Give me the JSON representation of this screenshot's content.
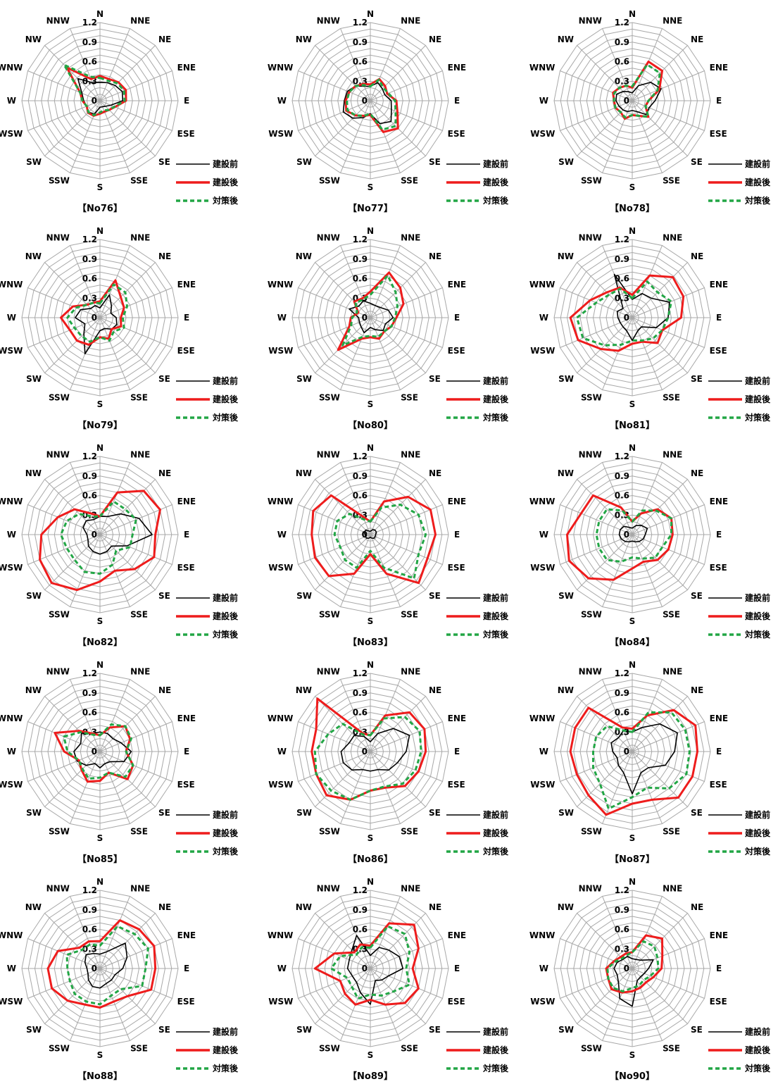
{
  "directions": [
    "N",
    "NNE",
    "NE",
    "ENE",
    "E",
    "ESE",
    "SE",
    "SSE",
    "S",
    "SSW",
    "SW",
    "WSW",
    "W",
    "WNW",
    "NW",
    "NNW"
  ],
  "axis": {
    "ticks": [
      "0",
      "0.3",
      "0.6",
      "0.9",
      "1.2"
    ],
    "rmax": 1.2
  },
  "legend": [
    {
      "label": "建設前",
      "color": "#000000",
      "style": "solid"
    },
    {
      "label": "建設後",
      "color": "#ee1c1c",
      "style": "solid"
    },
    {
      "label": "対策後",
      "color": "#22a645",
      "style": "dashed"
    }
  ],
  "chart_data": [
    {
      "type": "radar",
      "title": "【No76】",
      "series": [
        {
          "name": "建設前",
          "values": [
            0.28,
            0.3,
            0.33,
            0.37,
            0.35,
            0.18,
            0.12,
            0.1,
            0.1,
            0.22,
            0.25,
            0.22,
            0.25,
            0.3,
            0.48,
            0.3
          ]
        },
        {
          "name": "建設後",
          "values": [
            0.38,
            0.36,
            0.4,
            0.43,
            0.4,
            0.25,
            0.2,
            0.18,
            0.2,
            0.25,
            0.26,
            0.22,
            0.27,
            0.33,
            0.72,
            0.36
          ]
        },
        {
          "name": "対策後",
          "values": [
            0.35,
            0.33,
            0.38,
            0.4,
            0.38,
            0.24,
            0.2,
            0.16,
            0.18,
            0.24,
            0.25,
            0.22,
            0.27,
            0.33,
            0.78,
            0.4
          ]
        }
      ]
    },
    {
      "type": "radar",
      "title": "【No77】",
      "series": [
        {
          "name": "建設前",
          "values": [
            0.22,
            0.3,
            0.26,
            0.24,
            0.32,
            0.35,
            0.45,
            0.38,
            0.2,
            0.28,
            0.38,
            0.45,
            0.4,
            0.38,
            0.32,
            0.24
          ]
        },
        {
          "name": "建設後",
          "values": [
            0.25,
            0.36,
            0.32,
            0.28,
            0.4,
            0.45,
            0.6,
            0.52,
            0.22,
            0.25,
            0.32,
            0.4,
            0.38,
            0.35,
            0.32,
            0.28
          ]
        },
        {
          "name": "対策後",
          "values": [
            0.22,
            0.35,
            0.28,
            0.3,
            0.38,
            0.42,
            0.55,
            0.48,
            0.2,
            0.25,
            0.32,
            0.38,
            0.36,
            0.35,
            0.32,
            0.26
          ]
        }
      ]
    },
    {
      "type": "radar",
      "title": "【No78】",
      "series": [
        {
          "name": "建設前",
          "values": [
            0.12,
            0.25,
            0.4,
            0.48,
            0.35,
            0.28,
            0.3,
            0.18,
            0.15,
            0.18,
            0.2,
            0.22,
            0.25,
            0.26,
            0.2,
            0.15
          ]
        },
        {
          "name": "建設後",
          "values": [
            0.2,
            0.65,
            0.65,
            0.45,
            0.25,
            0.22,
            0.35,
            0.25,
            0.22,
            0.3,
            0.25,
            0.28,
            0.28,
            0.32,
            0.28,
            0.25
          ]
        },
        {
          "name": "対策後",
          "values": [
            0.22,
            0.6,
            0.6,
            0.42,
            0.25,
            0.22,
            0.35,
            0.25,
            0.22,
            0.28,
            0.25,
            0.28,
            0.28,
            0.3,
            0.28,
            0.25
          ]
        }
      ]
    },
    {
      "type": "radar",
      "title": "【No79】",
      "series": [
        {
          "name": "建設前",
          "values": [
            0.15,
            0.38,
            0.25,
            0.18,
            0.25,
            0.28,
            0.25,
            0.18,
            0.2,
            0.6,
            0.35,
            0.25,
            0.38,
            0.32,
            0.2,
            0.2
          ]
        },
        {
          "name": "建設後",
          "values": [
            0.25,
            0.62,
            0.45,
            0.4,
            0.32,
            0.35,
            0.25,
            0.35,
            0.3,
            0.45,
            0.5,
            0.5,
            0.6,
            0.45,
            0.28,
            0.25
          ]
        },
        {
          "name": "対策後",
          "values": [
            0.22,
            0.55,
            0.55,
            0.45,
            0.35,
            0.4,
            0.3,
            0.38,
            0.3,
            0.4,
            0.4,
            0.42,
            0.5,
            0.4,
            0.28,
            0.25
          ]
        }
      ]
    },
    {
      "type": "radar",
      "title": "【No80】",
      "series": [
        {
          "name": "建設前",
          "values": [
            0.22,
            0.2,
            0.22,
            0.3,
            0.35,
            0.25,
            0.28,
            0.2,
            0.15,
            0.25,
            0.2,
            0.18,
            0.18,
            0.35,
            0.25,
            0.28
          ]
        },
        {
          "name": "建設後",
          "values": [
            0.4,
            0.75,
            0.65,
            0.55,
            0.4,
            0.35,
            0.3,
            0.35,
            0.3,
            0.35,
            0.7,
            0.35,
            0.3,
            0.2,
            0.35,
            0.32
          ]
        },
        {
          "name": "対策後",
          "values": [
            0.35,
            0.7,
            0.55,
            0.45,
            0.38,
            0.35,
            0.3,
            0.32,
            0.28,
            0.32,
            0.6,
            0.32,
            0.28,
            0.22,
            0.32,
            0.3
          ]
        }
      ]
    },
    {
      "type": "radar",
      "title": "【No81】",
      "series": [
        {
          "name": "建設前",
          "values": [
            0.28,
            0.4,
            0.42,
            0.62,
            0.55,
            0.4,
            0.2,
            0.22,
            0.35,
            0.22,
            0.2,
            0.2,
            0.22,
            0.25,
            0.2,
            0.72
          ]
        },
        {
          "name": "建設後",
          "values": [
            0.35,
            0.7,
            0.88,
            0.85,
            0.75,
            0.5,
            0.55,
            0.4,
            0.4,
            0.55,
            0.68,
            0.9,
            0.95,
            0.7,
            0.55,
            0.5
          ]
        },
        {
          "name": "対策後",
          "values": [
            0.3,
            0.6,
            0.55,
            0.65,
            0.55,
            0.5,
            0.45,
            0.38,
            0.35,
            0.45,
            0.6,
            0.82,
            0.85,
            0.6,
            0.5,
            0.48
          ]
        }
      ]
    },
    {
      "type": "radar",
      "title": "【No82】",
      "series": [
        {
          "name": "建設前",
          "values": [
            0.28,
            0.3,
            0.45,
            0.65,
            0.8,
            0.45,
            0.25,
            0.28,
            0.3,
            0.28,
            0.25,
            0.2,
            0.2,
            0.28,
            0.3,
            0.25
          ]
        },
        {
          "name": "建設後",
          "values": [
            0.28,
            0.7,
            0.95,
            1.0,
            0.85,
            0.9,
            0.75,
            0.6,
            0.72,
            0.92,
            1.05,
            1.0,
            0.9,
            0.7,
            0.55,
            0.35
          ]
        },
        {
          "name": "対策後",
          "values": [
            0.28,
            0.55,
            0.55,
            0.6,
            0.5,
            0.5,
            0.35,
            0.5,
            0.6,
            0.62,
            0.55,
            0.55,
            0.6,
            0.55,
            0.45,
            0.3
          ]
        }
      ]
    },
    {
      "type": "radar",
      "title": "【No83】",
      "series": [
        {
          "name": "建設前",
          "values": [
            0.05,
            0.08,
            0.1,
            0.1,
            0.08,
            0.08,
            0.08,
            0.06,
            0.04,
            0.06,
            0.08,
            0.08,
            0.08,
            0.1,
            0.1,
            0.06
          ]
        },
        {
          "name": "建設後",
          "values": [
            0.2,
            0.55,
            0.82,
            1.0,
            1.0,
            0.95,
            1.05,
            0.65,
            0.3,
            0.65,
            0.9,
            0.92,
            0.9,
            0.95,
            0.85,
            0.3
          ]
        },
        {
          "name": "対策後",
          "values": [
            0.2,
            0.45,
            0.65,
            0.8,
            0.85,
            0.8,
            0.95,
            0.55,
            0.25,
            0.55,
            0.55,
            0.5,
            0.55,
            0.55,
            0.45,
            0.25
          ]
        }
      ]
    },
    {
      "type": "radar",
      "title": "【No84】",
      "series": [
        {
          "name": "建設前",
          "values": [
            0.1,
            0.15,
            0.2,
            0.25,
            0.2,
            0.18,
            0.15,
            0.12,
            0.1,
            0.12,
            0.15,
            0.18,
            0.2,
            0.2,
            0.18,
            0.12
          ]
        },
        {
          "name": "建設後",
          "values": [
            0.2,
            0.35,
            0.55,
            0.65,
            0.62,
            0.6,
            0.55,
            0.45,
            0.52,
            0.75,
            0.95,
            1.05,
            1.0,
            0.85,
            0.85,
            0.45
          ]
        },
        {
          "name": "対策後",
          "values": [
            0.2,
            0.4,
            0.52,
            0.65,
            0.6,
            0.5,
            0.5,
            0.4,
            0.35,
            0.45,
            0.55,
            0.55,
            0.55,
            0.55,
            0.55,
            0.4
          ]
        }
      ]
    },
    {
      "type": "radar",
      "title": "【No85】",
      "series": [
        {
          "name": "建設前",
          "values": [
            0.3,
            0.3,
            0.28,
            0.35,
            0.48,
            0.4,
            0.22,
            0.2,
            0.25,
            0.2,
            0.3,
            0.38,
            0.4,
            0.32,
            0.4,
            0.3
          ]
        },
        {
          "name": "建設後",
          "values": [
            0.25,
            0.4,
            0.55,
            0.5,
            0.4,
            0.55,
            0.6,
            0.35,
            0.45,
            0.5,
            0.4,
            0.35,
            0.55,
            0.75,
            0.45,
            0.3
          ]
        },
        {
          "name": "対策後",
          "values": [
            0.25,
            0.45,
            0.55,
            0.52,
            0.4,
            0.55,
            0.55,
            0.35,
            0.4,
            0.45,
            0.38,
            0.35,
            0.5,
            0.6,
            0.42,
            0.28
          ]
        }
      ]
    },
    {
      "type": "radar",
      "title": "【No86】",
      "series": [
        {
          "name": "建設前",
          "values": [
            0.15,
            0.3,
            0.5,
            0.65,
            0.55,
            0.45,
            0.4,
            0.3,
            0.3,
            0.3,
            0.4,
            0.45,
            0.45,
            0.35,
            0.35,
            0.25
          ]
        },
        {
          "name": "建設後",
          "values": [
            0.25,
            0.6,
            0.85,
            0.9,
            0.85,
            0.8,
            0.75,
            0.6,
            0.6,
            0.8,
            0.95,
            0.9,
            0.9,
            0.9,
            1.15,
            0.3
          ]
        },
        {
          "name": "対策後",
          "values": [
            0.25,
            0.55,
            0.75,
            0.82,
            0.78,
            0.75,
            0.7,
            0.58,
            0.6,
            0.8,
            0.85,
            0.9,
            0.85,
            0.7,
            0.6,
            0.28
          ]
        }
      ]
    },
    {
      "type": "radar",
      "title": "【No87】",
      "series": [
        {
          "name": "建設前",
          "values": [
            0.3,
            0.4,
            0.6,
            0.75,
            0.65,
            0.55,
            0.35,
            0.35,
            0.65,
            0.35,
            0.3,
            0.25,
            0.3,
            0.35,
            0.3,
            0.35
          ]
        },
        {
          "name": "建設後",
          "values": [
            0.35,
            0.6,
            0.9,
            1.05,
            1.0,
            1.0,
            1.0,
            0.8,
            0.8,
            1.05,
            0.95,
            0.92,
            0.95,
            0.95,
            0.95,
            0.4
          ]
        },
        {
          "name": "対策後",
          "values": [
            0.3,
            0.65,
            0.85,
            0.88,
            0.88,
            0.9,
            0.8,
            0.6,
            0.7,
            0.95,
            0.7,
            0.65,
            0.6,
            0.6,
            0.55,
            0.35
          ]
        }
      ]
    },
    {
      "type": "radar",
      "title": "【No88】",
      "series": [
        {
          "name": "建設前",
          "values": [
            0.22,
            0.28,
            0.55,
            0.45,
            0.35,
            0.25,
            0.25,
            0.25,
            0.3,
            0.3,
            0.25,
            0.2,
            0.2,
            0.25,
            0.3,
            0.25
          ]
        },
        {
          "name": "建設後",
          "values": [
            0.42,
            0.8,
            0.85,
            0.9,
            0.85,
            0.85,
            0.6,
            0.55,
            0.6,
            0.6,
            0.7,
            0.8,
            0.8,
            0.7,
            0.45,
            0.45
          ]
        },
        {
          "name": "対策後",
          "values": [
            0.35,
            0.7,
            0.75,
            0.8,
            0.7,
            0.7,
            0.45,
            0.45,
            0.55,
            0.55,
            0.55,
            0.5,
            0.5,
            0.55,
            0.4,
            0.4
          ]
        }
      ]
    },
    {
      "type": "radar",
      "title": "【No89】",
      "series": [
        {
          "name": "建設前",
          "values": [
            0.2,
            0.35,
            0.4,
            0.48,
            0.5,
            0.3,
            0.25,
            0.2,
            0.55,
            0.4,
            0.3,
            0.3,
            0.35,
            0.35,
            0.4,
            0.55
          ]
        },
        {
          "name": "建設後",
          "values": [
            0.35,
            0.75,
            0.95,
            0.8,
            0.65,
            0.8,
            0.75,
            0.6,
            0.48,
            0.6,
            0.55,
            0.5,
            0.85,
            0.6,
            0.35,
            0.4
          ]
        },
        {
          "name": "対策後",
          "values": [
            0.32,
            0.7,
            0.75,
            0.65,
            0.55,
            0.65,
            0.5,
            0.45,
            0.4,
            0.5,
            0.4,
            0.38,
            0.6,
            0.5,
            0.3,
            0.35
          ]
        }
      ]
    },
    {
      "type": "radar",
      "title": "【No90】",
      "series": [
        {
          "name": "建設前",
          "values": [
            0.15,
            0.15,
            0.18,
            0.35,
            0.25,
            0.2,
            0.18,
            0.2,
            0.58,
            0.5,
            0.3,
            0.25,
            0.28,
            0.25,
            0.2,
            0.2
          ]
        },
        {
          "name": "建設後",
          "values": [
            0.25,
            0.55,
            0.65,
            0.5,
            0.45,
            0.35,
            0.3,
            0.32,
            0.35,
            0.4,
            0.45,
            0.4,
            0.4,
            0.3,
            0.25,
            0.25
          ]
        },
        {
          "name": "対策後",
          "values": [
            0.25,
            0.45,
            0.48,
            0.42,
            0.4,
            0.3,
            0.25,
            0.28,
            0.3,
            0.38,
            0.42,
            0.4,
            0.38,
            0.28,
            0.22,
            0.22
          ]
        }
      ]
    }
  ]
}
